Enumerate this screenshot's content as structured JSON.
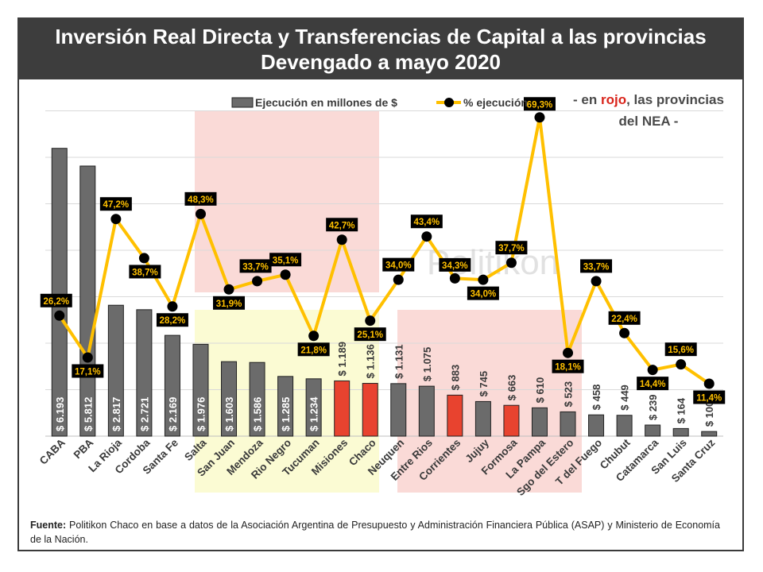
{
  "title": {
    "line1": "Inversión Real Directa y Transferencias de Capital a las provincias",
    "line2": "Devengado a mayo 2020"
  },
  "note": {
    "before": "- en ",
    "highlight": "rojo",
    "after1": ", las provincias",
    "line2": "del NEA -"
  },
  "watermark": "Politikon",
  "source": {
    "label": "Fuente:",
    "text": " Politikon Chaco en base a datos de la Asociación Argentina de Presupuesto y Administración Financiera Pública (ASAP) y Ministerio de Economía de la Nación."
  },
  "colors": {
    "bar": "#6b6b6b",
    "bar_nea": "#e8432f",
    "line": "#ffc000",
    "marker": "#000000",
    "label_bg": "#000000",
    "label_text": "#ffc000",
    "band_pink": "#fadad7",
    "band_yellow": "#fbfbd3",
    "title_bg": "#3d3d3d"
  },
  "chart_data": {
    "type": "bar",
    "categories": [
      "CABA",
      "PBA",
      "La Rioja",
      "Cordoba",
      "Santa Fe",
      "Salta",
      "San Juan",
      "Mendoza",
      "Rio Negro",
      "Tucuman",
      "Misiones",
      "Chaco",
      "Neuquen",
      "Entre Rios",
      "Corrientes",
      "Jujuy",
      "Formosa",
      "La Pampa",
      "Sgo del Estero",
      "T del Fuego",
      "Chubut",
      "Catamarca",
      "San Luis",
      "Santa Cruz"
    ],
    "series": [
      {
        "name": "Ejecución en millones de $",
        "type": "bar",
        "values": [
          6193,
          5812,
          2817,
          2721,
          2169,
          1976,
          1603,
          1586,
          1285,
          1234,
          1189,
          1136,
          1131,
          1075,
          883,
          745,
          663,
          610,
          523,
          458,
          449,
          239,
          164,
          100
        ],
        "labels": [
          "$ 6.193",
          "$ 5.812",
          "$ 2.817",
          "$ 2.721",
          "$ 2.169",
          "$ 1.976",
          "$ 1.603",
          "$ 1.586",
          "$ 1.285",
          "$ 1.234",
          "$ 1.189",
          "$ 1.136",
          "$ 1.131",
          "$ 1.075",
          "$ 883",
          "$ 745",
          "$ 663",
          "$ 610",
          "$ 523",
          "$ 458",
          "$ 449",
          "$ 239",
          "$ 164",
          "$ 100"
        ]
      },
      {
        "name": "% ejecución",
        "type": "line",
        "values": [
          26.2,
          17.1,
          47.2,
          38.7,
          28.2,
          48.3,
          31.9,
          33.7,
          35.1,
          21.8,
          42.7,
          25.1,
          34.0,
          43.4,
          34.3,
          34.0,
          37.7,
          69.3,
          18.1,
          33.7,
          22.4,
          14.4,
          15.6,
          11.4
        ],
        "labels": [
          "26,2%",
          "17,1%",
          "47,2%",
          "38,7%",
          "28,2%",
          "48,3%",
          "31,9%",
          "33,7%",
          "35,1%",
          "21,8%",
          "42,7%",
          "25,1%",
          "34,0%",
          "43,4%",
          "34,3%",
          "34,0%",
          "37,7%",
          "69,3%",
          "18,1%",
          "33,7%",
          "22,4%",
          "14,4%",
          "15,6%",
          "11,4%"
        ]
      }
    ],
    "nea_highlight": [
      "Misiones",
      "Chaco",
      "Corrientes",
      "Formosa"
    ],
    "legend_placement": "top",
    "grid": true
  }
}
